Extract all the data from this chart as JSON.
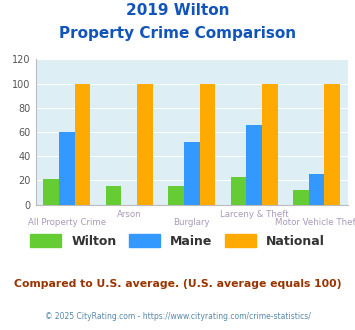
{
  "title_line1": "2019 Wilton",
  "title_line2": "Property Crime Comparison",
  "categories": [
    "All Property Crime",
    "Arson",
    "Burglary",
    "Larceny & Theft",
    "Motor Vehicle Theft"
  ],
  "wilton": [
    21,
    15,
    15,
    23,
    12
  ],
  "maine": [
    60,
    0,
    52,
    66,
    25
  ],
  "national": [
    100,
    100,
    100,
    100,
    100
  ],
  "bar_width": 0.25,
  "ylim": [
    0,
    120
  ],
  "yticks": [
    0,
    20,
    40,
    60,
    80,
    100,
    120
  ],
  "color_wilton": "#66cc33",
  "color_maine": "#3399ff",
  "color_national": "#ffaa00",
  "title_color": "#1155bb",
  "label_color": "#aa99bb",
  "bg_color": "#ddeef5",
  "footer_text": "Compared to U.S. average. (U.S. average equals 100)",
  "footer_color": "#993300",
  "copyright_text": "© 2025 CityRating.com - https://www.cityrating.com/crime-statistics/",
  "copyright_color": "#5588aa"
}
